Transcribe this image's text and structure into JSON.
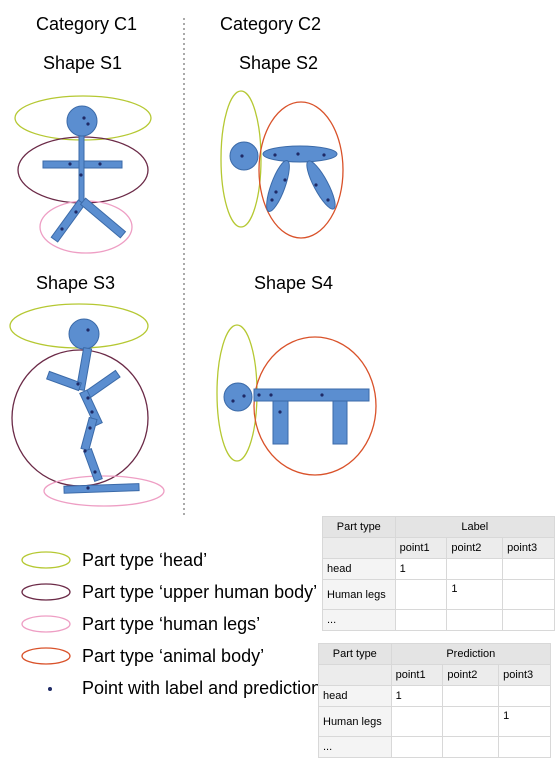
{
  "categories": [
    {
      "label": "Category C1"
    },
    {
      "label": "Category C2"
    }
  ],
  "shapes": [
    {
      "label": "Shape S1"
    },
    {
      "label": "Shape S2"
    },
    {
      "label": "Shape S3"
    },
    {
      "label": "Shape S4"
    }
  ],
  "legend": [
    {
      "text": "Part type ‘head’",
      "color": "#b5c832"
    },
    {
      "text": "Part type ‘upper human body’",
      "color": "#6b2a47"
    },
    {
      "text": "Part type ‘human legs’",
      "color": "#ee9ec4"
    },
    {
      "text": "Part type ‘animal body’",
      "color": "#d9522a"
    },
    {
      "text": "Point with label and prediction",
      "color": "#1f2a66"
    }
  ],
  "colors": {
    "limb_fill": "#5b8ed0",
    "limb_stroke": "#3b6aa8",
    "point": "#1f2a66"
  },
  "label_table": {
    "part_type": "Part type",
    "title": "Label",
    "columns": [
      "point1",
      "point2",
      "point3"
    ],
    "rows": [
      {
        "name": "head",
        "cells": [
          "1",
          "",
          ""
        ]
      },
      {
        "name": "Human legs",
        "cells": [
          "",
          "1",
          ""
        ]
      },
      {
        "name": "...",
        "cells": [
          "",
          "",
          ""
        ]
      }
    ]
  },
  "prediction_table": {
    "part_type": "Part type",
    "title": "Prediction",
    "columns": [
      "point1",
      "point2",
      "point3"
    ],
    "rows": [
      {
        "name": "head",
        "cells": [
          "1",
          "",
          ""
        ]
      },
      {
        "name": "Human legs",
        "cells": [
          "",
          "",
          "1"
        ]
      },
      {
        "name": "...",
        "cells": [
          "",
          "",
          ""
        ]
      }
    ]
  }
}
